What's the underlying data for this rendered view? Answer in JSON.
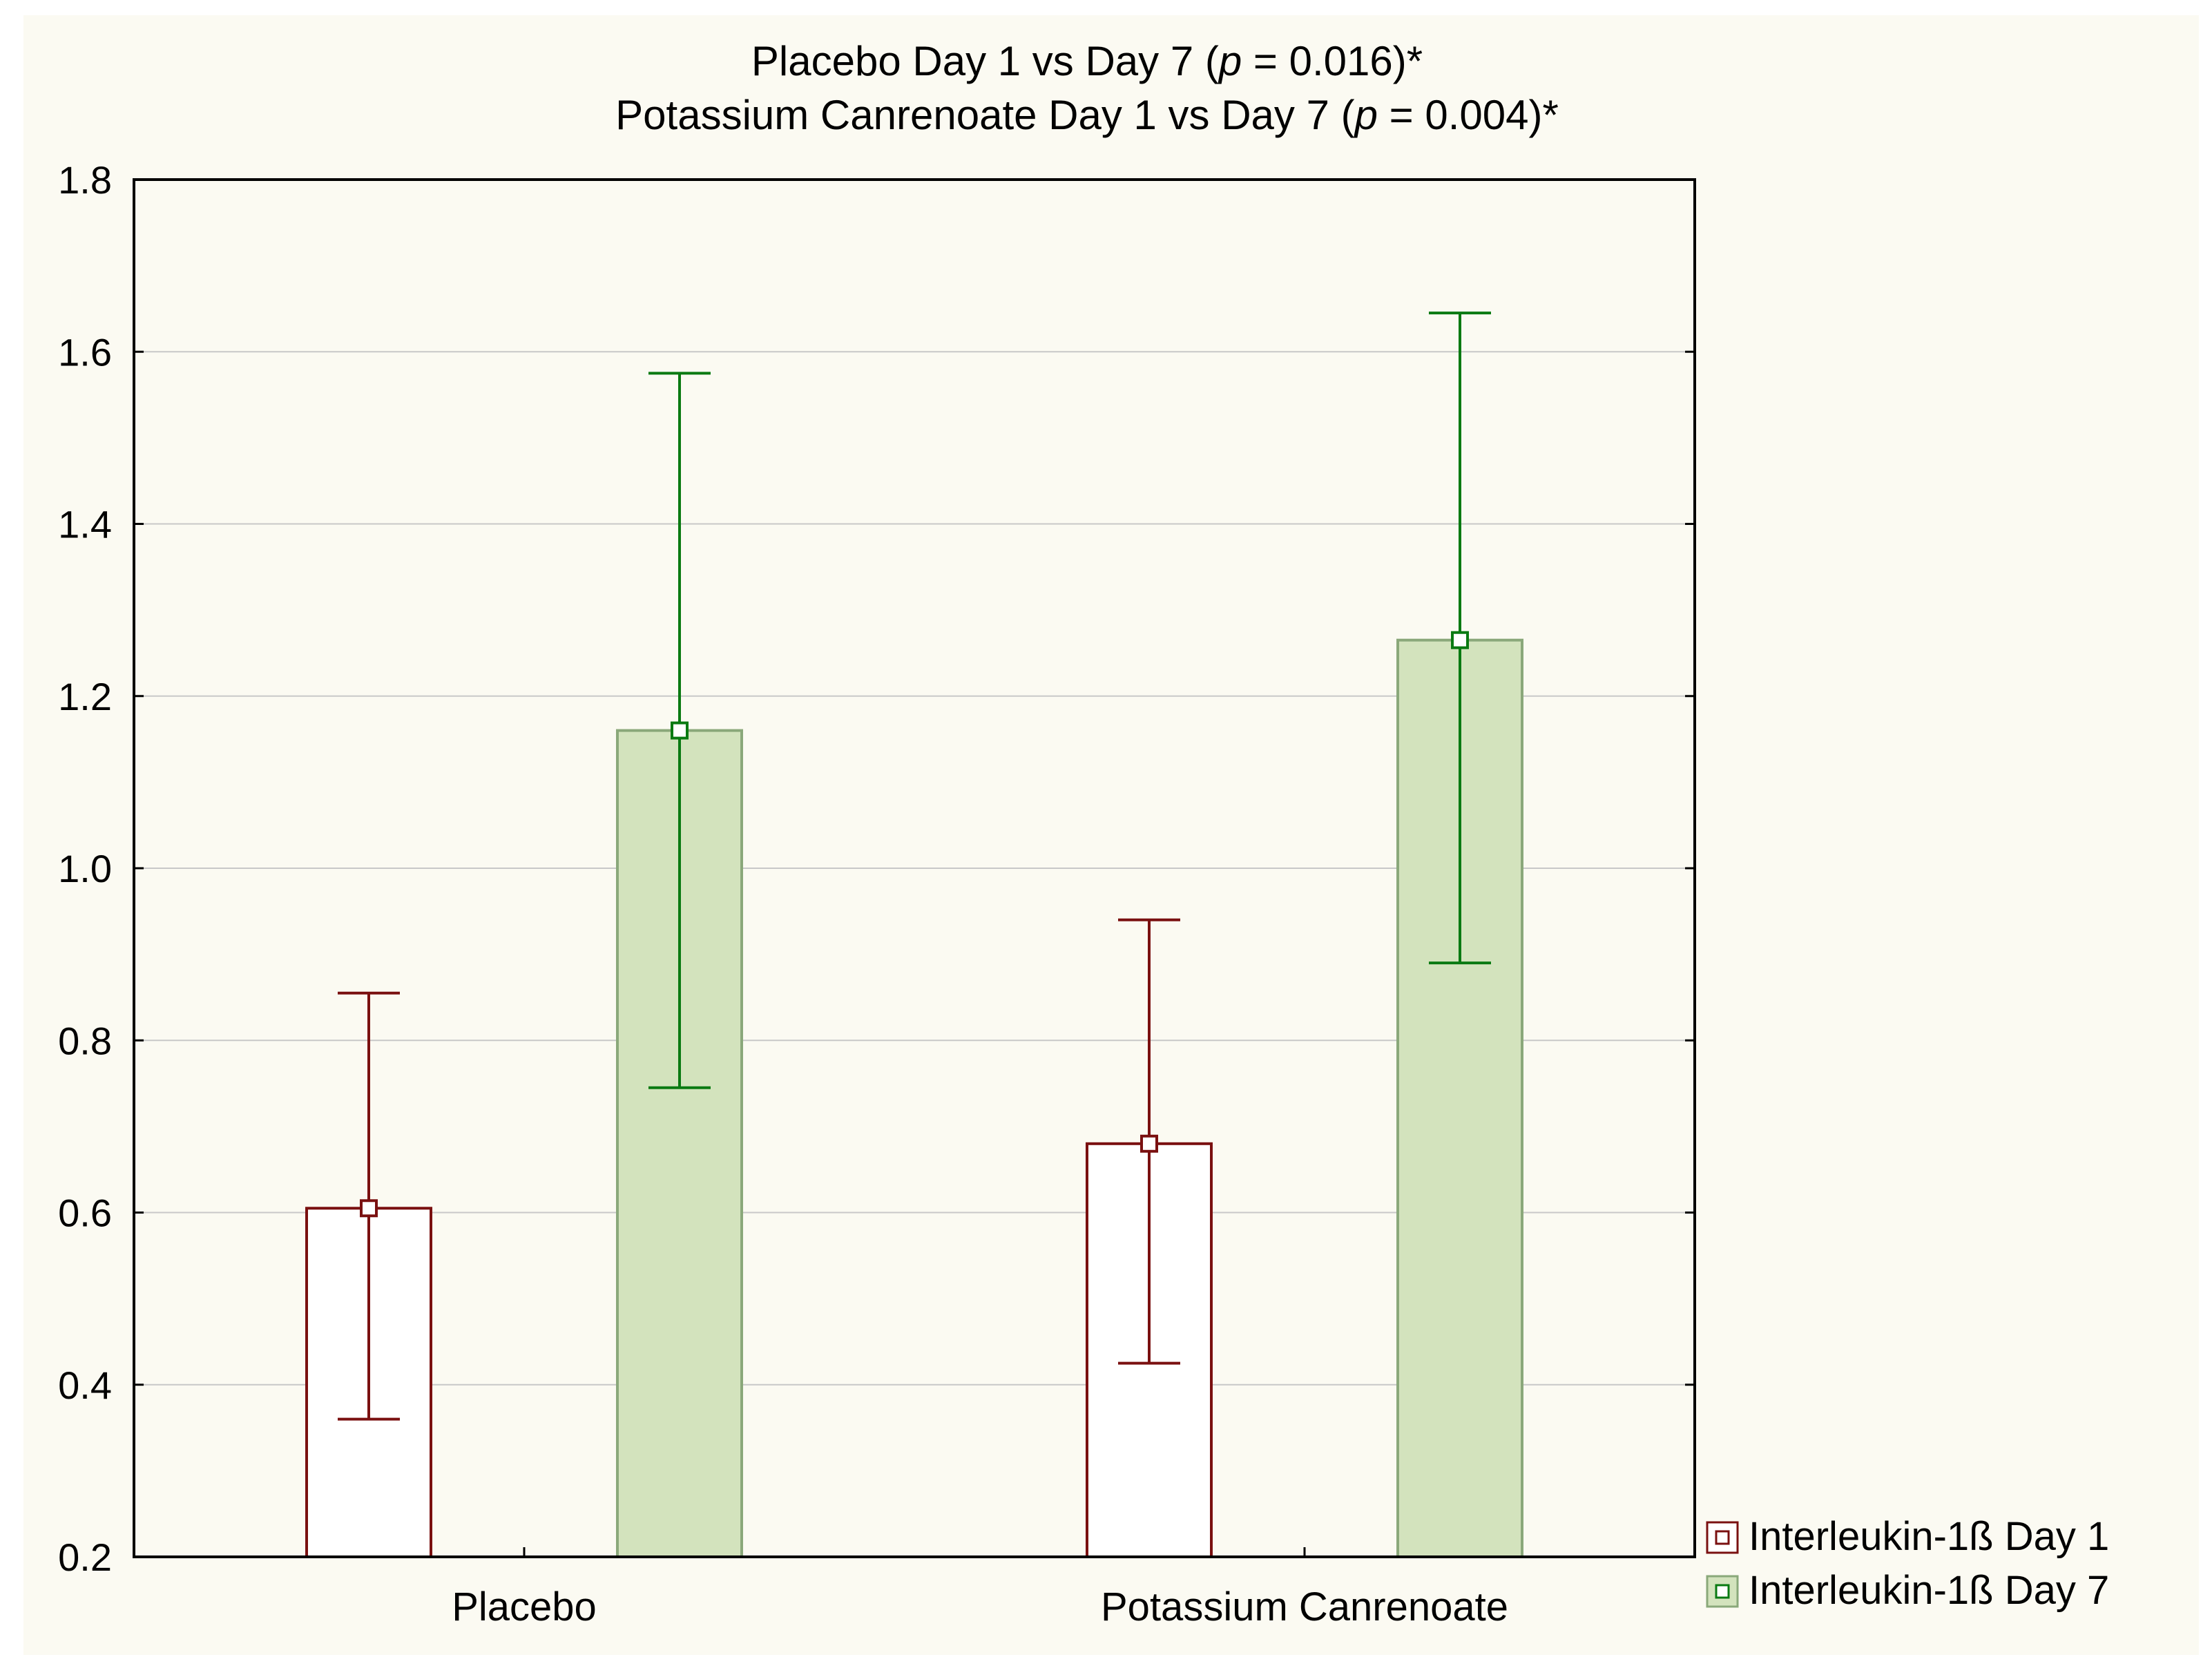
{
  "chart_data": {
    "type": "bar",
    "title_line1_pre": "Placebo Day 1 vs Day 7 (",
    "title_line1_p": "p",
    "title_line1_post": " = 0.016)*",
    "title_line2_pre": "Potassium Canrenoate Day 1 vs Day 7 (",
    "title_line2_p": "p",
    "title_line2_post": " = 0.004)*",
    "xlabel": "",
    "ylabel": "",
    "ylim": [
      0.2,
      1.8
    ],
    "yticks": [
      "0.2",
      "0.4",
      "0.6",
      "0.8",
      "1.0",
      "1.2",
      "1.4",
      "1.6",
      "1.8"
    ],
    "ytick_values": [
      0.2,
      0.4,
      0.6,
      0.8,
      1.0,
      1.2,
      1.4,
      1.6,
      1.8
    ],
    "grid": true,
    "legend_position": "right-bottom",
    "categories": [
      "Placebo",
      "Potassium Canrenoate"
    ],
    "series": [
      {
        "name": "Interleukin-1ß Day 1",
        "values": [
          0.605,
          0.68
        ],
        "error_low": [
          0.36,
          0.425
        ],
        "error_high": [
          0.855,
          0.94
        ],
        "fill": "#ffffff",
        "stroke": "#7a1010",
        "error_color": "#7a1010"
      },
      {
        "name": "Interleukin-1ß Day 7",
        "values": [
          1.16,
          1.265
        ],
        "error_low": [
          0.745,
          0.89
        ],
        "error_high": [
          1.575,
          1.645
        ],
        "fill": "#d3e3bd",
        "stroke": "#8aa87a",
        "error_color": "#0a7a12"
      }
    ]
  }
}
